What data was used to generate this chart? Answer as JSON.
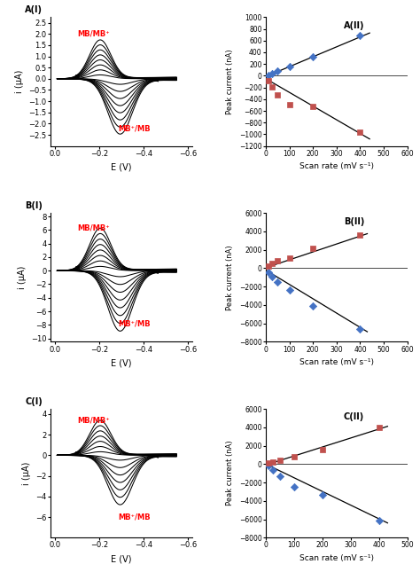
{
  "cv_A": {
    "ylim": [
      -3.0,
      2.75
    ],
    "yticks": [
      -2.5,
      -2.0,
      -1.5,
      -1.0,
      -0.5,
      0.0,
      0.5,
      1.0,
      1.5,
      2.0,
      2.5
    ],
    "ylabel": "i (μA)",
    "xlabel": "E (V)",
    "xticks": [
      0.0,
      -0.2,
      -0.4,
      -0.6
    ],
    "label_top": "MB/MB⁺",
    "label_bot": "MB⁺/MB",
    "n_curves": 8,
    "scale_max": 1.8,
    "panel_label": "A(I)"
  },
  "cv_B": {
    "ylim": [
      -10.5,
      8.5
    ],
    "yticks": [
      -10.0,
      -8.0,
      -6.0,
      -4.0,
      -2.0,
      0.0,
      2.0,
      4.0,
      6.0,
      8.0
    ],
    "ylabel": "i (μA)",
    "xlabel": "E (V)",
    "xticks": [
      0.0,
      -0.2,
      -0.4,
      -0.6
    ],
    "label_top": "MB/MB⁺",
    "label_bot": "MB⁺/MB",
    "n_curves": 8,
    "scale_max": 6.5,
    "panel_label": "B(I)"
  },
  "cv_C": {
    "ylim": [
      -8.0,
      4.5
    ],
    "yticks": [
      -6.0,
      -4.0,
      -2.0,
      0.0,
      2.0,
      4.0
    ],
    "ylabel": "i (μA)",
    "xlabel": "E (V)",
    "xticks": [
      0.0,
      -0.2,
      -0.4,
      -0.6
    ],
    "label_top": "MB/MB⁺",
    "label_bot": "MB⁺/MB",
    "n_curves": 7,
    "scale_max": 3.5,
    "panel_label": "C(I)"
  },
  "scatter_A": {
    "title": "A(II)",
    "xlabel": "Scan rate (mV s⁻¹)",
    "ylabel": "Peak current (nA)",
    "ylim": [
      -1200,
      1000
    ],
    "xlim": [
      0,
      600
    ],
    "yticks": [
      -1200,
      -1000,
      -800,
      -600,
      -400,
      -200,
      0,
      200,
      400,
      600,
      800,
      1000
    ],
    "xticks": [
      0,
      100,
      200,
      300,
      400,
      500,
      600
    ],
    "blue_x": [
      10,
      25,
      50,
      100,
      200,
      400
    ],
    "blue_y": [
      5,
      35,
      80,
      160,
      330,
      690
    ],
    "red_x": [
      10,
      25,
      50,
      100,
      200,
      400
    ],
    "red_y": [
      -80,
      -190,
      -330,
      -500,
      -530,
      -970
    ],
    "blue_fit_x": [
      0,
      440
    ],
    "blue_fit_y": [
      -15,
      730
    ],
    "red_fit_x": [
      0,
      440
    ],
    "red_fit_y": [
      -50,
      -1080
    ]
  },
  "scatter_B": {
    "title": "B(II)",
    "xlabel": "Scan rate (mV s⁻¹)",
    "ylabel": "Peak current (nA)",
    "ylim": [
      -8000,
      6000
    ],
    "xlim": [
      0,
      600
    ],
    "yticks": [
      -8000,
      -6000,
      -4000,
      -2000,
      0,
      2000,
      4000,
      6000
    ],
    "xticks": [
      0,
      100,
      200,
      300,
      400,
      500,
      600
    ],
    "red_x": [
      10,
      25,
      50,
      100,
      200,
      400
    ],
    "red_y": [
      200,
      500,
      800,
      1150,
      2200,
      3600
    ],
    "blue_x": [
      10,
      25,
      50,
      100,
      200,
      400
    ],
    "blue_y": [
      -400,
      -900,
      -1500,
      -2400,
      -4100,
      -6600
    ],
    "red_fit_x": [
      0,
      430
    ],
    "red_fit_y": [
      50,
      3750
    ],
    "blue_fit_x": [
      0,
      430
    ],
    "blue_fit_y": [
      -200,
      -6900
    ]
  },
  "scatter_C": {
    "title": "C(II)",
    "xlabel": "Scan rate (mV s⁻¹)",
    "ylabel": "Peak current (nA)",
    "ylim": [
      -8000,
      6000
    ],
    "xlim": [
      0,
      500
    ],
    "yticks": [
      -8000,
      -6000,
      -4000,
      -2000,
      0,
      2000,
      4000,
      6000
    ],
    "xticks": [
      0,
      100,
      200,
      300,
      400,
      500
    ],
    "red_x": [
      10,
      25,
      50,
      100,
      200,
      400
    ],
    "red_y": [
      100,
      250,
      450,
      800,
      1600,
      4000
    ],
    "blue_x": [
      10,
      25,
      50,
      100,
      200,
      400
    ],
    "blue_y": [
      -150,
      -600,
      -1300,
      -2500,
      -3300,
      -6100
    ],
    "red_fit_x": [
      0,
      430
    ],
    "red_fit_y": [
      -100,
      4100
    ],
    "blue_fit_x": [
      0,
      430
    ],
    "blue_fit_y": [
      0,
      -6400
    ]
  },
  "blue_color": "#4472C4",
  "red_color": "#C0504D",
  "background": "#ffffff"
}
